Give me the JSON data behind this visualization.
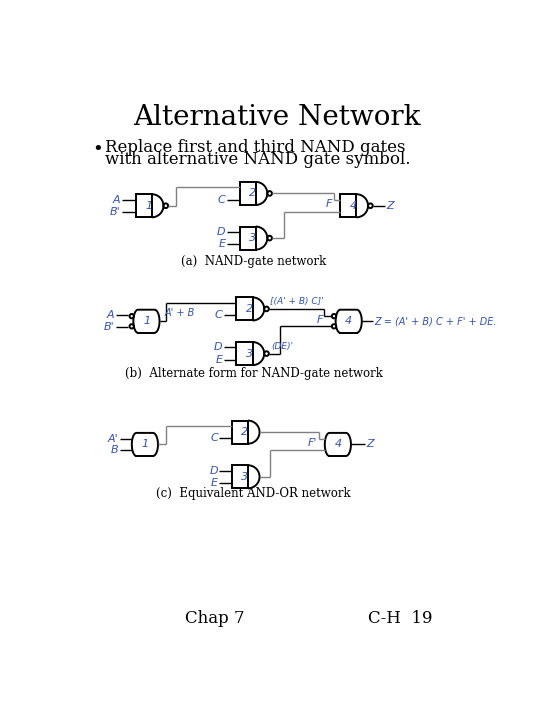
{
  "title": "Alternative Network",
  "bullet": "Replace first and third NAND gates\nwith alternative NAND gate symbol.",
  "caption_a": "(a)  NAND-gate network",
  "caption_b": "(b)  Alternate form for NAND-gate network",
  "caption_c": "(c)  Equivalent AND-OR network",
  "footer_left": "Chap 7",
  "footer_right": "C-H  19",
  "bg_color": "#ffffff",
  "line_color": "#000000",
  "label_color": "#3355aa",
  "gate_lw": 1.4,
  "wire_lw": 1.0
}
